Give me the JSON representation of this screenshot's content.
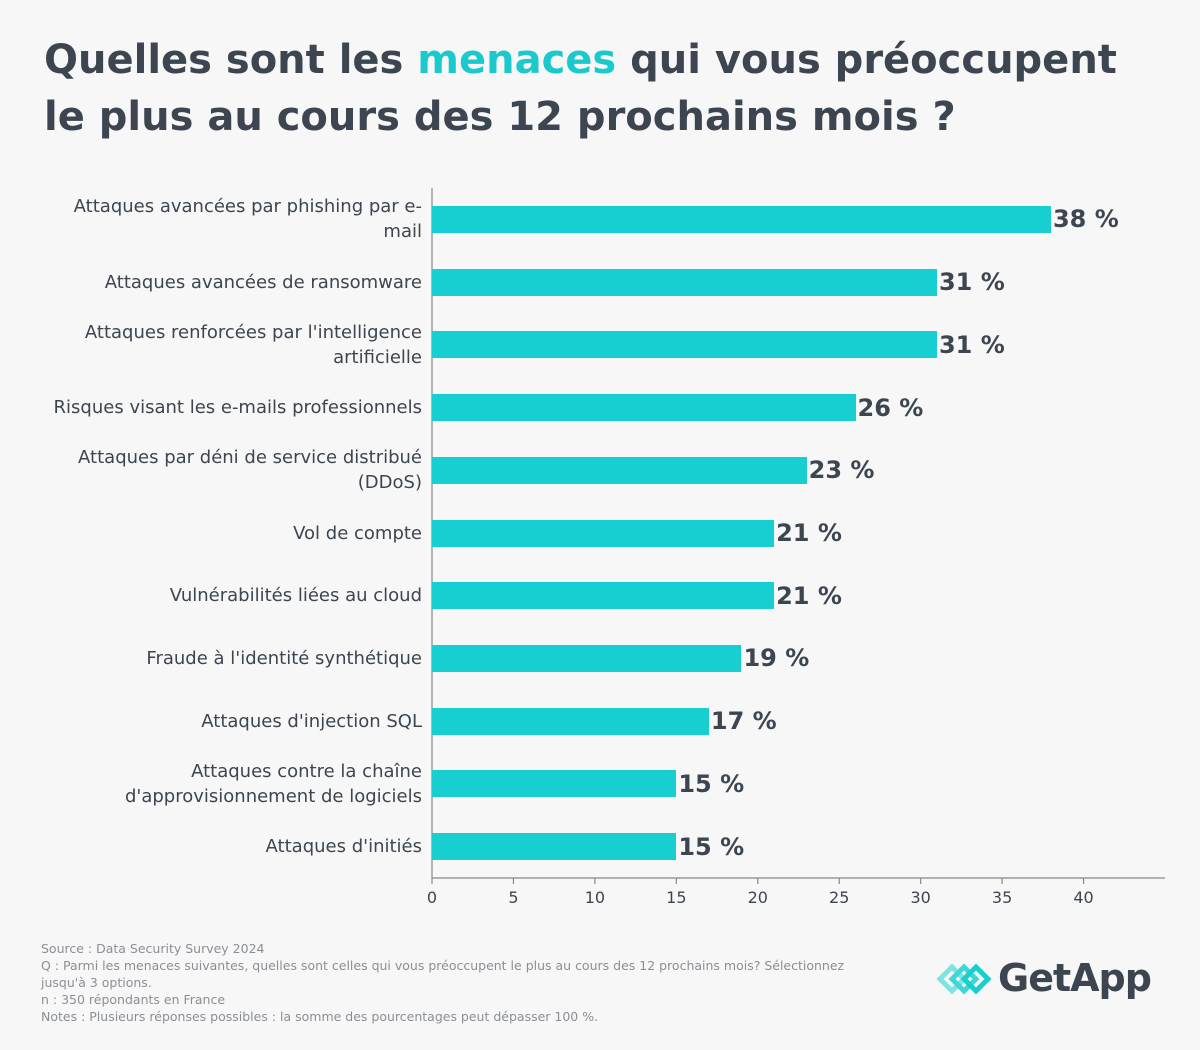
{
  "chart_data": {
    "type": "bar",
    "orientation": "horizontal",
    "title": {
      "before": "Quelles sont les",
      "highlight": "menaces",
      "after": "qui vous préoccupent le plus au cours des 12 prochains mois ?"
    },
    "categories": [
      "Attaques avancées par phishing par e-mail",
      "Attaques avancées de ransomware",
      "Attaques renforcées par l'intelligence artificielle",
      "Risques visant les e-mails professionnels",
      "Attaques par déni de service distribué (DDoS)",
      "Vol de compte",
      "Vulnérabilités liées au cloud",
      "Fraude à l'identité synthétique",
      "Attaques d'injection SQL",
      "Attaques contre la chaîne d'approvisionnement de logiciels",
      "Attaques d'initiés"
    ],
    "values": [
      38,
      31,
      31,
      26,
      23,
      21,
      21,
      19,
      17,
      15,
      15
    ],
    "value_labels": [
      "38 %",
      "31 %",
      "31 %",
      "26 %",
      "23 %",
      "21 %",
      "21 %",
      "19 %",
      "17 %",
      "15 %",
      "15 %"
    ],
    "color": "#17cfd1",
    "xlim": [
      0,
      45
    ],
    "xticks": [
      0,
      5,
      10,
      15,
      20,
      25,
      30,
      35,
      40
    ]
  },
  "footer": {
    "source": "Source :  Data Security Survey 2024",
    "question": "Q : Parmi les menaces suivantes, quelles sont celles qui vous préoccupent le plus au cours des 12 prochains mois? Sélectionnez jusqu'à 3 options.",
    "sample": "n : 350 répondants en France",
    "notes": "Notes : Plusieurs réponses possibles : la somme des pourcentages peut dépasser 100 %.",
    "logo": "GetApp"
  }
}
